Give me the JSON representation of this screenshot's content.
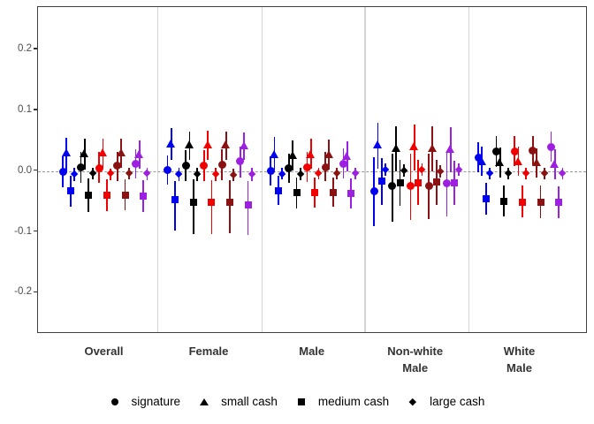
{
  "figure": {
    "kind": "faceted pointrange plot",
    "background": "#ffffff"
  },
  "chart_data": {
    "type": "scatter",
    "subtype": "pointrange",
    "title": "",
    "xlabel": "",
    "ylabel": "",
    "grid": "off",
    "ylim": [
      -0.27,
      0.27
    ],
    "zero_reference_line": 0.0,
    "yticks": [
      {
        "value": 0.2,
        "label": "0.2"
      },
      {
        "value": 0.1,
        "label": "0.1"
      },
      {
        "value": 0.0,
        "label": "0.0"
      },
      {
        "value": -0.1,
        "label": "-0.1"
      },
      {
        "value": -0.2,
        "label": "-0.2"
      }
    ],
    "legend_position": "bottom",
    "legend": [
      {
        "label": "signature",
        "marker": "circle"
      },
      {
        "label": "small cash",
        "marker": "triangle"
      },
      {
        "label": "medium cash",
        "marker": "square"
      },
      {
        "label": "large cash",
        "marker": "diamond"
      }
    ],
    "legend_marker_color": "#000000",
    "color_series": [
      "#0000f0",
      "#000000",
      "#f00000",
      "#8b1212",
      "#9d20e0"
    ],
    "shape_order": [
      "signature",
      "small cash",
      "medium cash",
      "large cash"
    ],
    "panels": [
      {
        "label": "Overall",
        "label_lines": "Overall",
        "estimates": [
          [
            [
              -0.001,
              -0.027,
              0.024
            ],
            [
              0.031,
              -0.001,
              0.055
            ],
            [
              -0.032,
              -0.058,
              -0.007
            ],
            [
              -0.005,
              -0.016,
              0.005
            ]
          ],
          [
            [
              0.006,
              -0.019,
              0.031
            ],
            [
              0.029,
              0.003,
              0.054
            ],
            [
              -0.04,
              -0.067,
              -0.012
            ],
            [
              -0.003,
              -0.014,
              0.006
            ]
          ],
          [
            [
              0.005,
              -0.02,
              0.031
            ],
            [
              0.031,
              0.006,
              0.054
            ],
            [
              -0.039,
              -0.066,
              -0.013
            ],
            [
              -0.004,
              -0.015,
              0.004
            ]
          ],
          [
            [
              0.009,
              -0.016,
              0.032
            ],
            [
              0.031,
              0.006,
              0.053
            ],
            [
              -0.039,
              -0.065,
              -0.013
            ],
            [
              -0.004,
              -0.014,
              0.005
            ]
          ],
          [
            [
              0.012,
              -0.012,
              0.036
            ],
            [
              0.027,
              0.004,
              0.05
            ],
            [
              -0.041,
              -0.068,
              -0.015
            ],
            [
              -0.004,
              -0.015,
              0.005
            ]
          ]
        ]
      },
      {
        "label": "Female",
        "label_lines": "Female",
        "estimates": [
          [
            [
              0.002,
              -0.022,
              0.026
            ],
            [
              0.045,
              0.019,
              0.071
            ],
            [
              -0.047,
              -0.098,
              -0.016
            ],
            [
              -0.005,
              -0.016,
              0.005
            ]
          ],
          [
            [
              0.009,
              -0.017,
              0.034
            ],
            [
              0.043,
              0.018,
              0.065
            ],
            [
              -0.051,
              -0.104,
              -0.013
            ],
            [
              -0.005,
              -0.016,
              0.005
            ]
          ],
          [
            [
              0.009,
              -0.016,
              0.034
            ],
            [
              0.044,
              0.019,
              0.067
            ],
            [
              -0.052,
              -0.103,
              -0.015
            ],
            [
              -0.005,
              -0.016,
              0.005
            ]
          ],
          [
            [
              0.011,
              -0.015,
              0.036
            ],
            [
              0.043,
              0.019,
              0.065
            ],
            [
              -0.052,
              -0.102,
              -0.015
            ],
            [
              -0.006,
              -0.017,
              0.004
            ]
          ],
          [
            [
              0.016,
              -0.01,
              0.04
            ],
            [
              0.042,
              0.018,
              0.063
            ],
            [
              -0.055,
              -0.105,
              -0.017
            ],
            [
              -0.005,
              -0.016,
              0.005
            ]
          ]
        ]
      },
      {
        "label": "Male",
        "label_lines": "Male",
        "estimates": [
          [
            [
              0.001,
              -0.023,
              0.024
            ],
            [
              0.028,
              0.002,
              0.056
            ],
            [
              -0.032,
              -0.055,
              -0.008
            ],
            [
              -0.005,
              -0.014,
              0.005
            ]
          ],
          [
            [
              0.005,
              -0.019,
              0.029
            ],
            [
              0.026,
              0.001,
              0.05
            ],
            [
              -0.035,
              -0.061,
              -0.011
            ],
            [
              -0.005,
              -0.015,
              0.005
            ]
          ],
          [
            [
              0.006,
              -0.018,
              0.031
            ],
            [
              0.028,
              0.004,
              0.054
            ],
            [
              -0.035,
              -0.06,
              -0.01
            ],
            [
              -0.003,
              -0.013,
              0.006
            ]
          ],
          [
            [
              0.006,
              -0.017,
              0.031
            ],
            [
              0.027,
              0.003,
              0.052
            ],
            [
              -0.035,
              -0.059,
              -0.011
            ],
            [
              -0.003,
              -0.013,
              0.006
            ]
          ],
          [
            [
              0.012,
              -0.012,
              0.037
            ],
            [
              0.024,
              0.0,
              0.049
            ],
            [
              -0.037,
              -0.062,
              -0.012
            ],
            [
              -0.003,
              -0.013,
              0.006
            ]
          ]
        ]
      },
      {
        "label": "Non-white Male",
        "label_lines": "Non-white\nMale",
        "estimates": [
          [
            [
              -0.033,
              -0.091,
              0.023
            ],
            [
              0.043,
              0.004,
              0.079
            ],
            [
              -0.017,
              -0.055,
              0.021
            ],
            [
              0.002,
              -0.008,
              0.013
            ]
          ],
          [
            [
              -0.025,
              -0.084,
              0.028
            ],
            [
              0.038,
              -0.001,
              0.074
            ],
            [
              -0.019,
              -0.057,
              0.018
            ],
            [
              0.001,
              -0.009,
              0.011
            ]
          ],
          [
            [
              -0.025,
              -0.081,
              0.028
            ],
            [
              0.04,
              0.001,
              0.077
            ],
            [
              -0.019,
              -0.056,
              0.018
            ],
            [
              0.002,
              -0.008,
              0.013
            ]
          ],
          [
            [
              -0.024,
              -0.079,
              0.028
            ],
            [
              0.037,
              -0.001,
              0.073
            ],
            [
              -0.018,
              -0.055,
              0.019
            ],
            [
              0.0,
              -0.011,
              0.01
            ]
          ],
          [
            [
              -0.02,
              -0.074,
              0.031
            ],
            [
              0.036,
              -0.002,
              0.072
            ],
            [
              -0.02,
              -0.056,
              0.017
            ],
            [
              0.002,
              -0.008,
              0.013
            ]
          ]
        ]
      },
      {
        "label": "White Male",
        "label_lines": "White\nMale",
        "estimates": [
          [
            [
              0.022,
              -0.002,
              0.048
            ],
            [
              0.016,
              -0.008,
              0.04
            ],
            [
              -0.046,
              -0.072,
              -0.019
            ],
            [
              -0.003,
              -0.013,
              0.006
            ]
          ],
          [
            [
              0.032,
              0.007,
              0.057
            ],
            [
              0.015,
              -0.01,
              0.039
            ],
            [
              -0.05,
              -0.075,
              -0.023
            ],
            [
              -0.004,
              -0.014,
              0.005
            ]
          ],
          [
            [
              0.032,
              0.008,
              0.057
            ],
            [
              0.016,
              -0.008,
              0.04
            ],
            [
              -0.051,
              -0.076,
              -0.024
            ],
            [
              -0.003,
              -0.013,
              0.006
            ]
          ],
          [
            [
              0.034,
              0.009,
              0.058
            ],
            [
              0.014,
              -0.011,
              0.038
            ],
            [
              -0.051,
              -0.077,
              -0.024
            ],
            [
              -0.004,
              -0.014,
              0.005
            ]
          ],
          [
            [
              0.04,
              0.015,
              0.065
            ],
            [
              0.011,
              -0.013,
              0.036
            ],
            [
              -0.052,
              -0.078,
              -0.025
            ],
            [
              -0.003,
              -0.013,
              0.006
            ]
          ]
        ]
      }
    ]
  }
}
